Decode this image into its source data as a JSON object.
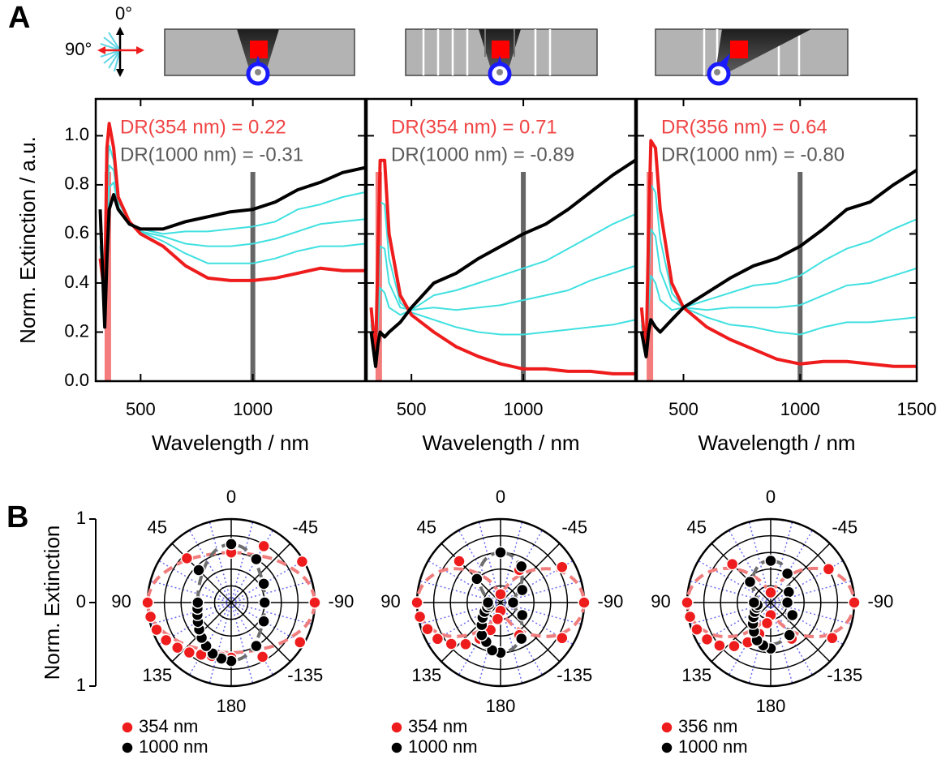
{
  "panel_labels": [
    "A",
    "B"
  ],
  "orientation_labels": [
    "0°",
    "90°"
  ],
  "chart_data": [
    {
      "type": "line",
      "xlabel": "Wavelength / nm",
      "ylabel": "Norm. Extinction / a.u.",
      "xlim": [
        300,
        1500
      ],
      "ylim": [
        0,
        1.15
      ],
      "xticks": [
        500,
        1000
      ],
      "yticks": [
        {
          "value": 0,
          "label": "0.0"
        },
        0.2,
        0.4,
        0.6,
        0.8,
        {
          "value": 1,
          "label": "1.0"
        }
      ],
      "show_ytick_labels": true,
      "vlines": [
        354,
        1000
      ],
      "vline_colors": [
        "#f47c7c",
        "#666666"
      ],
      "annotations": [
        {
          "text": "DR(354 nm) = 0.22",
          "color": "#f04545"
        },
        {
          "text": "DR(1000 nm) = -0.31",
          "color": "#5a5a5a"
        }
      ],
      "x": [
        320,
        340,
        350,
        360,
        380,
        400,
        450,
        500,
        600,
        700,
        800,
        900,
        1000,
        1100,
        1200,
        1300,
        1400,
        1500
      ],
      "series": [
        {
          "color": "#40e0e0",
          "values": [
            0.55,
            0.32,
            0.84,
            0.96,
            0.9,
            0.74,
            0.65,
            0.61,
            0.57,
            0.52,
            0.48,
            0.48,
            0.48,
            0.5,
            0.53,
            0.55,
            0.55,
            0.56
          ]
        },
        {
          "color": "#40e0e0",
          "values": [
            0.6,
            0.29,
            0.73,
            0.88,
            0.86,
            0.73,
            0.65,
            0.61,
            0.59,
            0.56,
            0.55,
            0.55,
            0.56,
            0.58,
            0.61,
            0.64,
            0.65,
            0.66
          ]
        },
        {
          "color": "#40e0e0",
          "values": [
            0.65,
            0.25,
            0.61,
            0.79,
            0.81,
            0.71,
            0.64,
            0.62,
            0.6,
            0.61,
            0.61,
            0.62,
            0.63,
            0.65,
            0.7,
            0.72,
            0.75,
            0.77
          ]
        },
        {
          "color": "#ee1c1c",
          "values": [
            0.5,
            0.35,
            0.95,
            1.05,
            0.95,
            0.75,
            0.65,
            0.6,
            0.55,
            0.47,
            0.42,
            0.41,
            0.41,
            0.42,
            0.44,
            0.46,
            0.45,
            0.45
          ]
        },
        {
          "color": "#000000",
          "values": [
            0.7,
            0.22,
            0.5,
            0.7,
            0.76,
            0.7,
            0.64,
            0.62,
            0.62,
            0.65,
            0.67,
            0.69,
            0.7,
            0.73,
            0.78,
            0.81,
            0.85,
            0.87
          ]
        }
      ]
    },
    {
      "type": "line",
      "xlabel": "Wavelength / nm",
      "xlim": [
        300,
        1500
      ],
      "ylim": [
        0,
        1.15
      ],
      "xticks": [
        500,
        1000
      ],
      "yticks": [
        0,
        0.2,
        0.4,
        0.6,
        0.8,
        1
      ],
      "show_ytick_labels": false,
      "vlines": [
        354,
        1000
      ],
      "vline_colors": [
        "#f47c7c",
        "#666666"
      ],
      "annotations": [
        {
          "text": "DR(354 nm) = 0.71",
          "color": "#f04545"
        },
        {
          "text": "DR(1000 nm) = -0.89",
          "color": "#5a5a5a"
        }
      ],
      "x": [
        320,
        340,
        350,
        360,
        380,
        400,
        450,
        500,
        600,
        700,
        800,
        900,
        1000,
        1100,
        1200,
        1300,
        1400,
        1500
      ],
      "series": [
        {
          "color": "#40e0e0",
          "values": [
            0.28,
            0.09,
            0.41,
            0.73,
            0.72,
            0.5,
            0.32,
            0.28,
            0.25,
            0.22,
            0.2,
            0.19,
            0.19,
            0.2,
            0.21,
            0.22,
            0.23,
            0.25
          ]
        },
        {
          "color": "#40e0e0",
          "values": [
            0.25,
            0.08,
            0.33,
            0.55,
            0.54,
            0.4,
            0.3,
            0.29,
            0.3,
            0.29,
            0.3,
            0.31,
            0.33,
            0.35,
            0.37,
            0.41,
            0.44,
            0.47
          ]
        },
        {
          "color": "#40e0e0",
          "values": [
            0.23,
            0.07,
            0.24,
            0.38,
            0.36,
            0.3,
            0.27,
            0.29,
            0.35,
            0.37,
            0.4,
            0.43,
            0.46,
            0.49,
            0.54,
            0.59,
            0.64,
            0.68
          ]
        },
        {
          "color": "#ee1c1c",
          "values": [
            0.3,
            0.1,
            0.5,
            0.9,
            0.9,
            0.6,
            0.35,
            0.27,
            0.2,
            0.14,
            0.1,
            0.07,
            0.05,
            0.05,
            0.04,
            0.04,
            0.03,
            0.03
          ]
        },
        {
          "color": "#000000",
          "values": [
            0.2,
            0.06,
            0.15,
            0.2,
            0.18,
            0.2,
            0.24,
            0.3,
            0.4,
            0.44,
            0.5,
            0.55,
            0.6,
            0.64,
            0.7,
            0.77,
            0.84,
            0.9
          ]
        }
      ]
    },
    {
      "type": "line",
      "xlabel": "Wavelength / nm",
      "xlim": [
        300,
        1500
      ],
      "ylim": [
        0,
        1.15
      ],
      "xticks": [
        500,
        1000,
        1500
      ],
      "yticks": [
        0,
        0.2,
        0.4,
        0.6,
        0.8,
        1
      ],
      "show_ytick_labels": false,
      "vlines": [
        356,
        1000
      ],
      "vline_colors": [
        "#f47c7c",
        "#666666"
      ],
      "annotations": [
        {
          "text": "DR(356 nm) = 0.64",
          "color": "#f04545"
        },
        {
          "text": "DR(1000 nm) = -0.80",
          "color": "#5a5a5a"
        }
      ],
      "x": [
        320,
        340,
        350,
        360,
        380,
        400,
        450,
        500,
        600,
        700,
        800,
        900,
        1000,
        1100,
        1200,
        1300,
        1400,
        1500
      ],
      "series": [
        {
          "color": "#40e0e0",
          "values": [
            0.28,
            0.1,
            0.5,
            0.8,
            0.77,
            0.58,
            0.36,
            0.3,
            0.26,
            0.23,
            0.22,
            0.2,
            0.19,
            0.22,
            0.24,
            0.24,
            0.25,
            0.26
          ]
        },
        {
          "color": "#40e0e0",
          "values": [
            0.25,
            0.1,
            0.4,
            0.62,
            0.59,
            0.45,
            0.33,
            0.3,
            0.29,
            0.3,
            0.3,
            0.3,
            0.31,
            0.35,
            0.39,
            0.4,
            0.43,
            0.46
          ]
        },
        {
          "color": "#40e0e0",
          "values": [
            0.23,
            0.1,
            0.3,
            0.43,
            0.4,
            0.33,
            0.29,
            0.3,
            0.33,
            0.36,
            0.39,
            0.4,
            0.43,
            0.49,
            0.54,
            0.57,
            0.62,
            0.66
          ]
        },
        {
          "color": "#ee1c1c",
          "values": [
            0.3,
            0.1,
            0.6,
            0.98,
            0.95,
            0.7,
            0.4,
            0.3,
            0.22,
            0.17,
            0.13,
            0.09,
            0.07,
            0.08,
            0.08,
            0.07,
            0.06,
            0.06
          ]
        },
        {
          "color": "#000000",
          "values": [
            0.2,
            0.1,
            0.2,
            0.25,
            0.22,
            0.2,
            0.25,
            0.3,
            0.36,
            0.42,
            0.47,
            0.5,
            0.55,
            0.62,
            0.7,
            0.73,
            0.8,
            0.86
          ]
        }
      ]
    },
    {
      "type": "polar",
      "ylabel": "Norm. Extinction",
      "rlim": [
        0,
        1
      ],
      "rticks": [
        0,
        1
      ],
      "rgrid": [
        0.2,
        0.4,
        0.6,
        0.8,
        1
      ],
      "angle_ticks": [
        0,
        -45,
        -90,
        -135,
        180,
        135,
        90,
        45
      ],
      "angles": [
        0,
        -30,
        -60,
        -90,
        -120,
        -150,
        180,
        170,
        160,
        150,
        140,
        130,
        120,
        110,
        100,
        90,
        45
      ],
      "fit_angles": [
        0,
        15,
        30,
        45,
        60,
        75,
        90,
        105,
        120,
        135,
        150,
        165,
        180,
        195,
        210,
        225,
        240,
        255,
        270,
        285,
        300,
        315,
        330,
        345
      ],
      "series": [
        {
          "name": "354 nm",
          "color": "#ee1c1c",
          "fit_color": "#f07d7d",
          "values": [
            0.6,
            0.78,
            0.98,
            1.0,
            0.95,
            0.75,
            0.66,
            0.66,
            0.68,
            0.72,
            0.78,
            0.84,
            0.9,
            0.95,
            0.98,
            1.0,
            0.75
          ],
          "fit_values": [
            0.6,
            0.61,
            0.65,
            0.73,
            0.83,
            0.95,
            1,
            0.95,
            0.83,
            0.73,
            0.65,
            0.61,
            0.6,
            0.61,
            0.65,
            0.73,
            0.83,
            0.95,
            1,
            0.95,
            0.83,
            0.73,
            0.65,
            0.61
          ]
        },
        {
          "name": "1000 nm",
          "color": "#000000",
          "fit_color": "#6e6e6e",
          "values": [
            0.7,
            0.6,
            0.45,
            0.4,
            0.45,
            0.6,
            0.7,
            0.68,
            0.65,
            0.6,
            0.55,
            0.5,
            0.46,
            0.43,
            0.41,
            0.4,
            0.55
          ],
          "fit_values": [
            0.7,
            0.66,
            0.57,
            0.49,
            0.44,
            0.41,
            0.4,
            0.41,
            0.44,
            0.49,
            0.57,
            0.66,
            0.7,
            0.66,
            0.57,
            0.49,
            0.44,
            0.41,
            0.4,
            0.41,
            0.44,
            0.49,
            0.57,
            0.66
          ]
        }
      ]
    },
    {
      "type": "polar",
      "rlim": [
        0,
        1
      ],
      "rgrid": [
        0.2,
        0.4,
        0.6,
        0.8,
        1
      ],
      "angle_ticks": [
        0,
        -45,
        -90,
        -135,
        180,
        135,
        90,
        45
      ],
      "angles": [
        0,
        -30,
        -60,
        -90,
        -120,
        -150,
        180,
        170,
        160,
        150,
        140,
        130,
        120,
        110,
        100,
        90,
        45
      ],
      "fit_angles": [
        0,
        15,
        30,
        45,
        60,
        75,
        90,
        105,
        120,
        135,
        150,
        165,
        180,
        195,
        210,
        225,
        240,
        255,
        270,
        285,
        300,
        315,
        330,
        345
      ],
      "series": [
        {
          "name": "354 nm",
          "color": "#ee1c1c",
          "fit_color": "#f07d7d",
          "values": [
            0.1,
            0.45,
            0.85,
            1.0,
            0.85,
            0.45,
            0.1,
            0.2,
            0.35,
            0.5,
            0.65,
            0.77,
            0.87,
            0.93,
            0.98,
            1.0,
            0.7
          ],
          "fit_values": [
            0.1,
            0.16,
            0.33,
            0.55,
            0.78,
            0.94,
            1,
            0.94,
            0.78,
            0.55,
            0.33,
            0.16,
            0.1,
            0.16,
            0.33,
            0.55,
            0.78,
            0.94,
            1,
            0.94,
            0.78,
            0.55,
            0.33,
            0.16
          ]
        },
        {
          "name": "1000 nm",
          "color": "#000000",
          "fit_color": "#6e6e6e",
          "values": [
            0.6,
            0.5,
            0.3,
            0.15,
            0.3,
            0.5,
            0.6,
            0.58,
            0.5,
            0.45,
            0.35,
            0.28,
            0.22,
            0.17,
            0.14,
            0.15,
            0.4
          ],
          "fit_values": [
            0.6,
            0.57,
            0.48,
            0.36,
            0.24,
            0.15,
            0.12,
            0.15,
            0.24,
            0.36,
            0.48,
            0.57,
            0.6,
            0.57,
            0.48,
            0.36,
            0.24,
            0.15,
            0.12,
            0.15,
            0.24,
            0.36,
            0.48,
            0.57
          ]
        }
      ]
    },
    {
      "type": "polar",
      "rlim": [
        0,
        1
      ],
      "rgrid": [
        0.2,
        0.4,
        0.6,
        0.8,
        1
      ],
      "angle_ticks": [
        0,
        -45,
        -90,
        -135,
        180,
        135,
        90,
        45
      ],
      "angles": [
        0,
        -30,
        -60,
        -90,
        -120,
        -150,
        180,
        170,
        160,
        150,
        140,
        130,
        120,
        110,
        100,
        90,
        45
      ],
      "fit_angles": [
        0,
        15,
        30,
        45,
        60,
        75,
        90,
        105,
        120,
        135,
        150,
        165,
        180,
        195,
        210,
        225,
        240,
        255,
        270,
        285,
        300,
        315,
        330,
        345
      ],
      "series": [
        {
          "name": "356 nm",
          "color": "#ee1c1c",
          "fit_color": "#f07d7d",
          "values": [
            0.12,
            0.4,
            0.8,
            1.0,
            0.85,
            0.5,
            0.15,
            0.25,
            0.4,
            0.55,
            0.68,
            0.8,
            0.88,
            0.94,
            0.98,
            1.0,
            0.65
          ],
          "fit_values": [
            0.12,
            0.18,
            0.34,
            0.56,
            0.78,
            0.94,
            1,
            0.94,
            0.78,
            0.56,
            0.34,
            0.18,
            0.12,
            0.18,
            0.34,
            0.56,
            0.78,
            0.94,
            1,
            0.94,
            0.78,
            0.56,
            0.34,
            0.18
          ]
        },
        {
          "name": "1000 nm",
          "color": "#000000",
          "fit_color": "#6e6e6e",
          "values": [
            0.5,
            0.4,
            0.25,
            0.2,
            0.3,
            0.45,
            0.55,
            0.52,
            0.48,
            0.4,
            0.33,
            0.27,
            0.22,
            0.18,
            0.16,
            0.2,
            0.35
          ],
          "fit_values": [
            0.5,
            0.48,
            0.4,
            0.31,
            0.22,
            0.16,
            0.14,
            0.16,
            0.22,
            0.31,
            0.4,
            0.48,
            0.5,
            0.48,
            0.4,
            0.31,
            0.22,
            0.16,
            0.14,
            0.16,
            0.22,
            0.31,
            0.4,
            0.48
          ]
        }
      ]
    }
  ]
}
